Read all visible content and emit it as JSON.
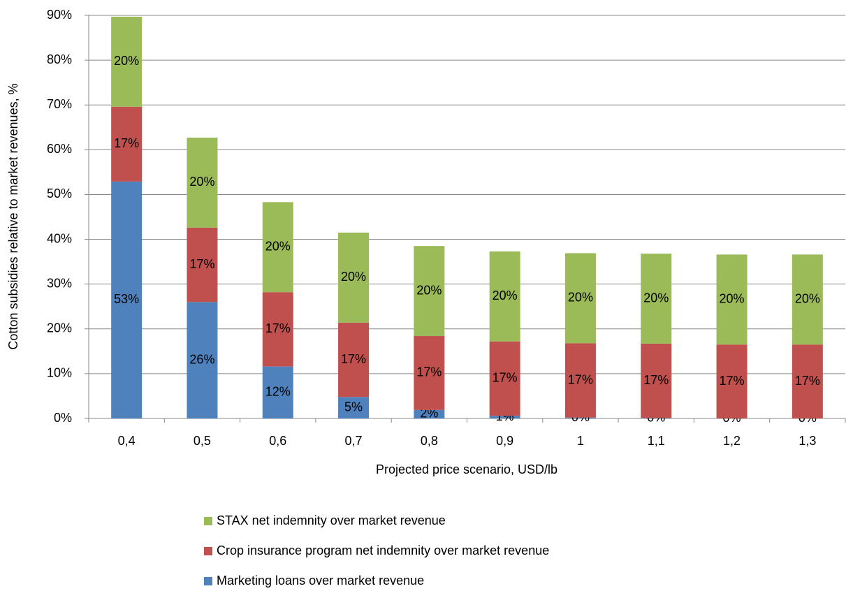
{
  "chart_data": {
    "type": "stacked_bar",
    "x_label": "Projected price scenario, USD/lb",
    "y_label": "Cotton subsidies relative to market revenues, %",
    "categories": [
      "0,4",
      "0,5",
      "0,6",
      "0,7",
      "0,8",
      "0,9",
      "1",
      "1,1",
      "1,2",
      "1,3"
    ],
    "series": [
      {
        "name": "Marketing loans over market revenue",
        "color": "#4f81bd",
        "values": [
          52.9,
          26.0,
          11.6,
          4.8,
          1.9,
          0.6,
          0.2,
          0.1,
          0,
          0
        ],
        "value_labels": [
          "53%",
          "26%",
          "12%",
          "5%",
          "2%",
          "1%",
          "0%",
          "0%",
          "0%",
          "0%"
        ]
      },
      {
        "name": "Crop insurance program net indemnity over market revenue",
        "color": "#c0504d",
        "values": [
          16.7,
          16.6,
          16.6,
          16.6,
          16.5,
          16.6,
          16.6,
          16.6,
          16.5,
          16.5
        ],
        "value_labels": [
          "17%",
          "17%",
          "17%",
          "17%",
          "17%",
          "17%",
          "17%",
          "17%",
          "17%",
          "17%"
        ]
      },
      {
        "name": "STAX net  indemnity over market revenue",
        "color": "#9bbb59",
        "values": [
          20.1,
          20.1,
          20.1,
          20.1,
          20.1,
          20.1,
          20.1,
          20.1,
          20.1,
          20.1
        ],
        "value_labels": [
          "20%",
          "20%",
          "20%",
          "20%",
          "20%",
          "20%",
          "20%",
          "20%",
          "20%",
          "20%"
        ]
      }
    ],
    "ylim": [
      0,
      90
    ],
    "yticks": [
      {
        "value": 0,
        "label": "0%"
      },
      {
        "value": 10,
        "label": "10%"
      },
      {
        "value": 20,
        "label": "20%"
      },
      {
        "value": 30,
        "label": "30%"
      },
      {
        "value": 40,
        "label": "40%"
      },
      {
        "value": 50,
        "label": "50%"
      },
      {
        "value": 60,
        "label": "60%"
      },
      {
        "value": 70,
        "label": "70%"
      },
      {
        "value": 80,
        "label": "80%"
      },
      {
        "value": 90,
        "label": "90%"
      }
    ],
    "grid": true,
    "legend": "bottom"
  }
}
